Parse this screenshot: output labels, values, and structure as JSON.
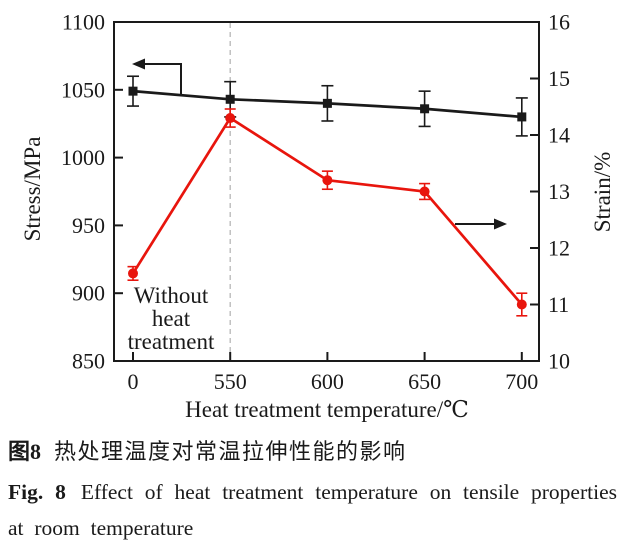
{
  "figure_caption": {
    "zh_label": "图8",
    "zh_text": "热处理温度对常温拉伸性能的影响",
    "en_label": "Fig. 8",
    "en_text": "Effect of heat treatment temperature on tensile properties at room temperature"
  },
  "chart_data": {
    "type": "line",
    "title": "",
    "xlabel": "Heat treatment temperature/℃",
    "categories": [
      "0",
      "550",
      "600",
      "650",
      "700"
    ],
    "grid": false,
    "left_axis": {
      "label": "Stress/MPa",
      "min": 850,
      "max": 1100,
      "tick_step": 50,
      "ticks": [
        850,
        900,
        950,
        1000,
        1050,
        1100
      ]
    },
    "right_axis": {
      "label": "Strain/%",
      "min": 10,
      "max": 16,
      "tick_step": 1,
      "ticks": [
        10,
        11,
        12,
        13,
        14,
        15,
        16
      ]
    },
    "series": [
      {
        "name": "Stress",
        "axis": "left",
        "marker": "square",
        "color": "#1a1a1a",
        "values": [
          1049,
          1043,
          1040,
          1036,
          1030
        ],
        "errors": [
          11,
          13,
          13,
          13,
          14
        ]
      },
      {
        "name": "Strain",
        "axis": "right",
        "marker": "circle",
        "color": "#e8150d",
        "values": [
          11.55,
          14.3,
          13.2,
          13.0,
          11.0
        ],
        "errors": [
          0.12,
          0.16,
          0.16,
          0.14,
          0.2
        ]
      }
    ],
    "annotations": {
      "in_plot_note": [
        "Without",
        "heat",
        "treatment"
      ],
      "dashed_guide_at_category": "550",
      "guide_color": "#bcbcbc"
    }
  }
}
